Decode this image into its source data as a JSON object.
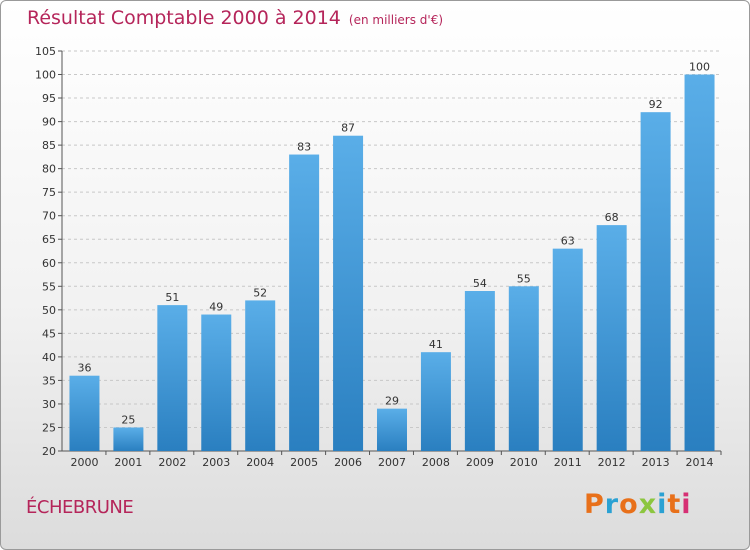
{
  "header": {
    "title": "Résultat Comptable 2000 à 2014",
    "subtitle": "(en milliers d'€)"
  },
  "footer": {
    "commune": "ÉCHEBRUNE",
    "brand": "Proxiti",
    "brand_colors": [
      "#e8701a",
      "#2aa1d3",
      "#e8701a",
      "#8cc63f",
      "#2aa1d3",
      "#e8701a",
      "#d62f74"
    ]
  },
  "chart_data": {
    "type": "bar",
    "title": "Résultat Comptable 2000 à 2014",
    "subtitle": "(en milliers d'€)",
    "categories": [
      "2000",
      "2001",
      "2002",
      "2003",
      "2004",
      "2005",
      "2006",
      "2007",
      "2008",
      "2009",
      "2010",
      "2011",
      "2012",
      "2013",
      "2014"
    ],
    "values": [
      36,
      25,
      51,
      49,
      52,
      83,
      87,
      29,
      41,
      54,
      55,
      63,
      68,
      92,
      100
    ],
    "ylim": [
      20,
      105
    ],
    "yticks": [
      20,
      25,
      30,
      35,
      40,
      45,
      50,
      55,
      60,
      65,
      70,
      75,
      80,
      85,
      90,
      95,
      100,
      105
    ],
    "xlabel": "",
    "ylabel": "",
    "grid": true,
    "bar_color_top": "#5aaee8",
    "bar_color_bottom": "#2a7fc0"
  }
}
